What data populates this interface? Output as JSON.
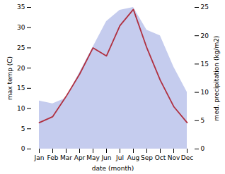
{
  "chart_data": {
    "type": "line",
    "categories": [
      "Jan",
      "Feb",
      "Mar",
      "Apr",
      "May",
      "Jun",
      "Jul",
      "Aug",
      "Sep",
      "Oct",
      "Nov",
      "Dec"
    ],
    "series": [
      {
        "type": "area",
        "axis": "y2",
        "color": "#c5ccee",
        "values": [
          8.5,
          8.0,
          9.0,
          13.5,
          18.0,
          22.5,
          24.5,
          25.0,
          21.0,
          20.0,
          14.5,
          10.0
        ]
      },
      {
        "type": "line",
        "color": "#b03040",
        "values": [
          6.5,
          8.0,
          13.0,
          18.5,
          25.0,
          23.0,
          30.5,
          34.5,
          25.0,
          17.0,
          10.5,
          6.5
        ]
      }
    ],
    "xlabel": "date (month)",
    "ylabel": "max temp (C)",
    "y2label": "med. precipitation (kg/m2)",
    "ylim": [
      0,
      35
    ],
    "yticks": [
      0,
      5,
      10,
      15,
      20,
      25,
      30,
      35
    ],
    "y2lim": [
      0,
      25
    ],
    "y2ticks": [
      0,
      5,
      10,
      15,
      20,
      25
    ]
  }
}
